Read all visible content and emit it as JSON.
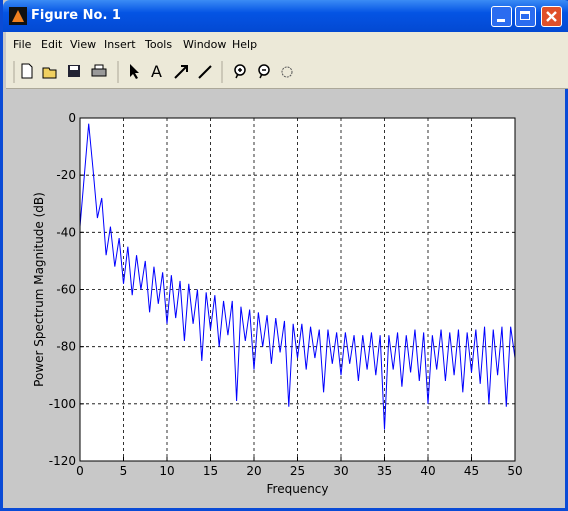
{
  "window": {
    "title": "Figure No. 1"
  },
  "menu": [
    "File",
    "Edit",
    "View",
    "Insert",
    "Tools",
    "Window",
    "Help"
  ],
  "chart_data": {
    "type": "line",
    "xlabel": "Frequency",
    "ylabel": "Power Spectrum Magnitude (dB)",
    "xlim": [
      0,
      50
    ],
    "ylim": [
      -120,
      0
    ],
    "xticks": [
      0,
      5,
      10,
      15,
      20,
      25,
      30,
      35,
      40,
      45,
      50
    ],
    "yticks": [
      0,
      -20,
      -40,
      -60,
      -80,
      -100,
      -120
    ],
    "grid": true,
    "x": [
      0,
      0.5,
      1,
      1.5,
      2,
      2.5,
      3,
      3.5,
      4,
      4.5,
      5,
      5.5,
      6,
      6.5,
      7,
      7.5,
      8,
      8.5,
      9,
      9.5,
      10,
      10.5,
      11,
      11.5,
      12,
      12.5,
      13,
      13.5,
      14,
      14.5,
      15,
      15.5,
      16,
      16.5,
      17,
      17.5,
      18,
      18.5,
      19,
      19.5,
      20,
      20.5,
      21,
      21.5,
      22,
      22.5,
      23,
      23.5,
      24,
      24.5,
      25,
      25.5,
      26,
      26.5,
      27,
      27.5,
      28,
      28.5,
      29,
      29.5,
      30,
      30.5,
      31,
      31.5,
      32,
      32.5,
      33,
      33.5,
      34,
      34.5,
      35,
      35.5,
      36,
      36.5,
      37,
      37.5,
      38,
      38.5,
      39,
      39.5,
      40,
      40.5,
      41,
      41.5,
      42,
      42.5,
      43,
      43.5,
      44,
      44.5,
      45,
      45.5,
      46,
      46.5,
      47,
      47.5,
      48,
      48.5,
      49,
      49.5,
      50
    ],
    "series": [
      {
        "color": "#0000ff",
        "values": [
          -38,
          -20,
          -2,
          -18,
          -35,
          -28,
          -48,
          -38,
          -52,
          -42,
          -58,
          -45,
          -62,
          -48,
          -60,
          -50,
          -68,
          -52,
          -65,
          -54,
          -72,
          -55,
          -70,
          -57,
          -78,
          -58,
          -72,
          -60,
          -85,
          -61,
          -74,
          -62,
          -80,
          -64,
          -76,
          -64,
          -99,
          -66,
          -78,
          -67,
          -88,
          -68,
          -80,
          -69,
          -86,
          -70,
          -82,
          -71,
          -101,
          -72,
          -84,
          -72,
          -88,
          -73,
          -84,
          -74,
          -96,
          -74,
          -86,
          -75,
          -90,
          -75,
          -86,
          -76,
          -92,
          -76,
          -88,
          -75,
          -90,
          -76,
          -109,
          -76,
          -88,
          -75,
          -94,
          -76,
          -89,
          -74,
          -92,
          -75,
          -100,
          -76,
          -88,
          -74,
          -92,
          -75,
          -90,
          -74,
          -96,
          -75,
          -89,
          -74,
          -93,
          -73,
          -100,
          -74,
          -90,
          -73,
          -101,
          -73,
          -84
        ]
      }
    ]
  }
}
